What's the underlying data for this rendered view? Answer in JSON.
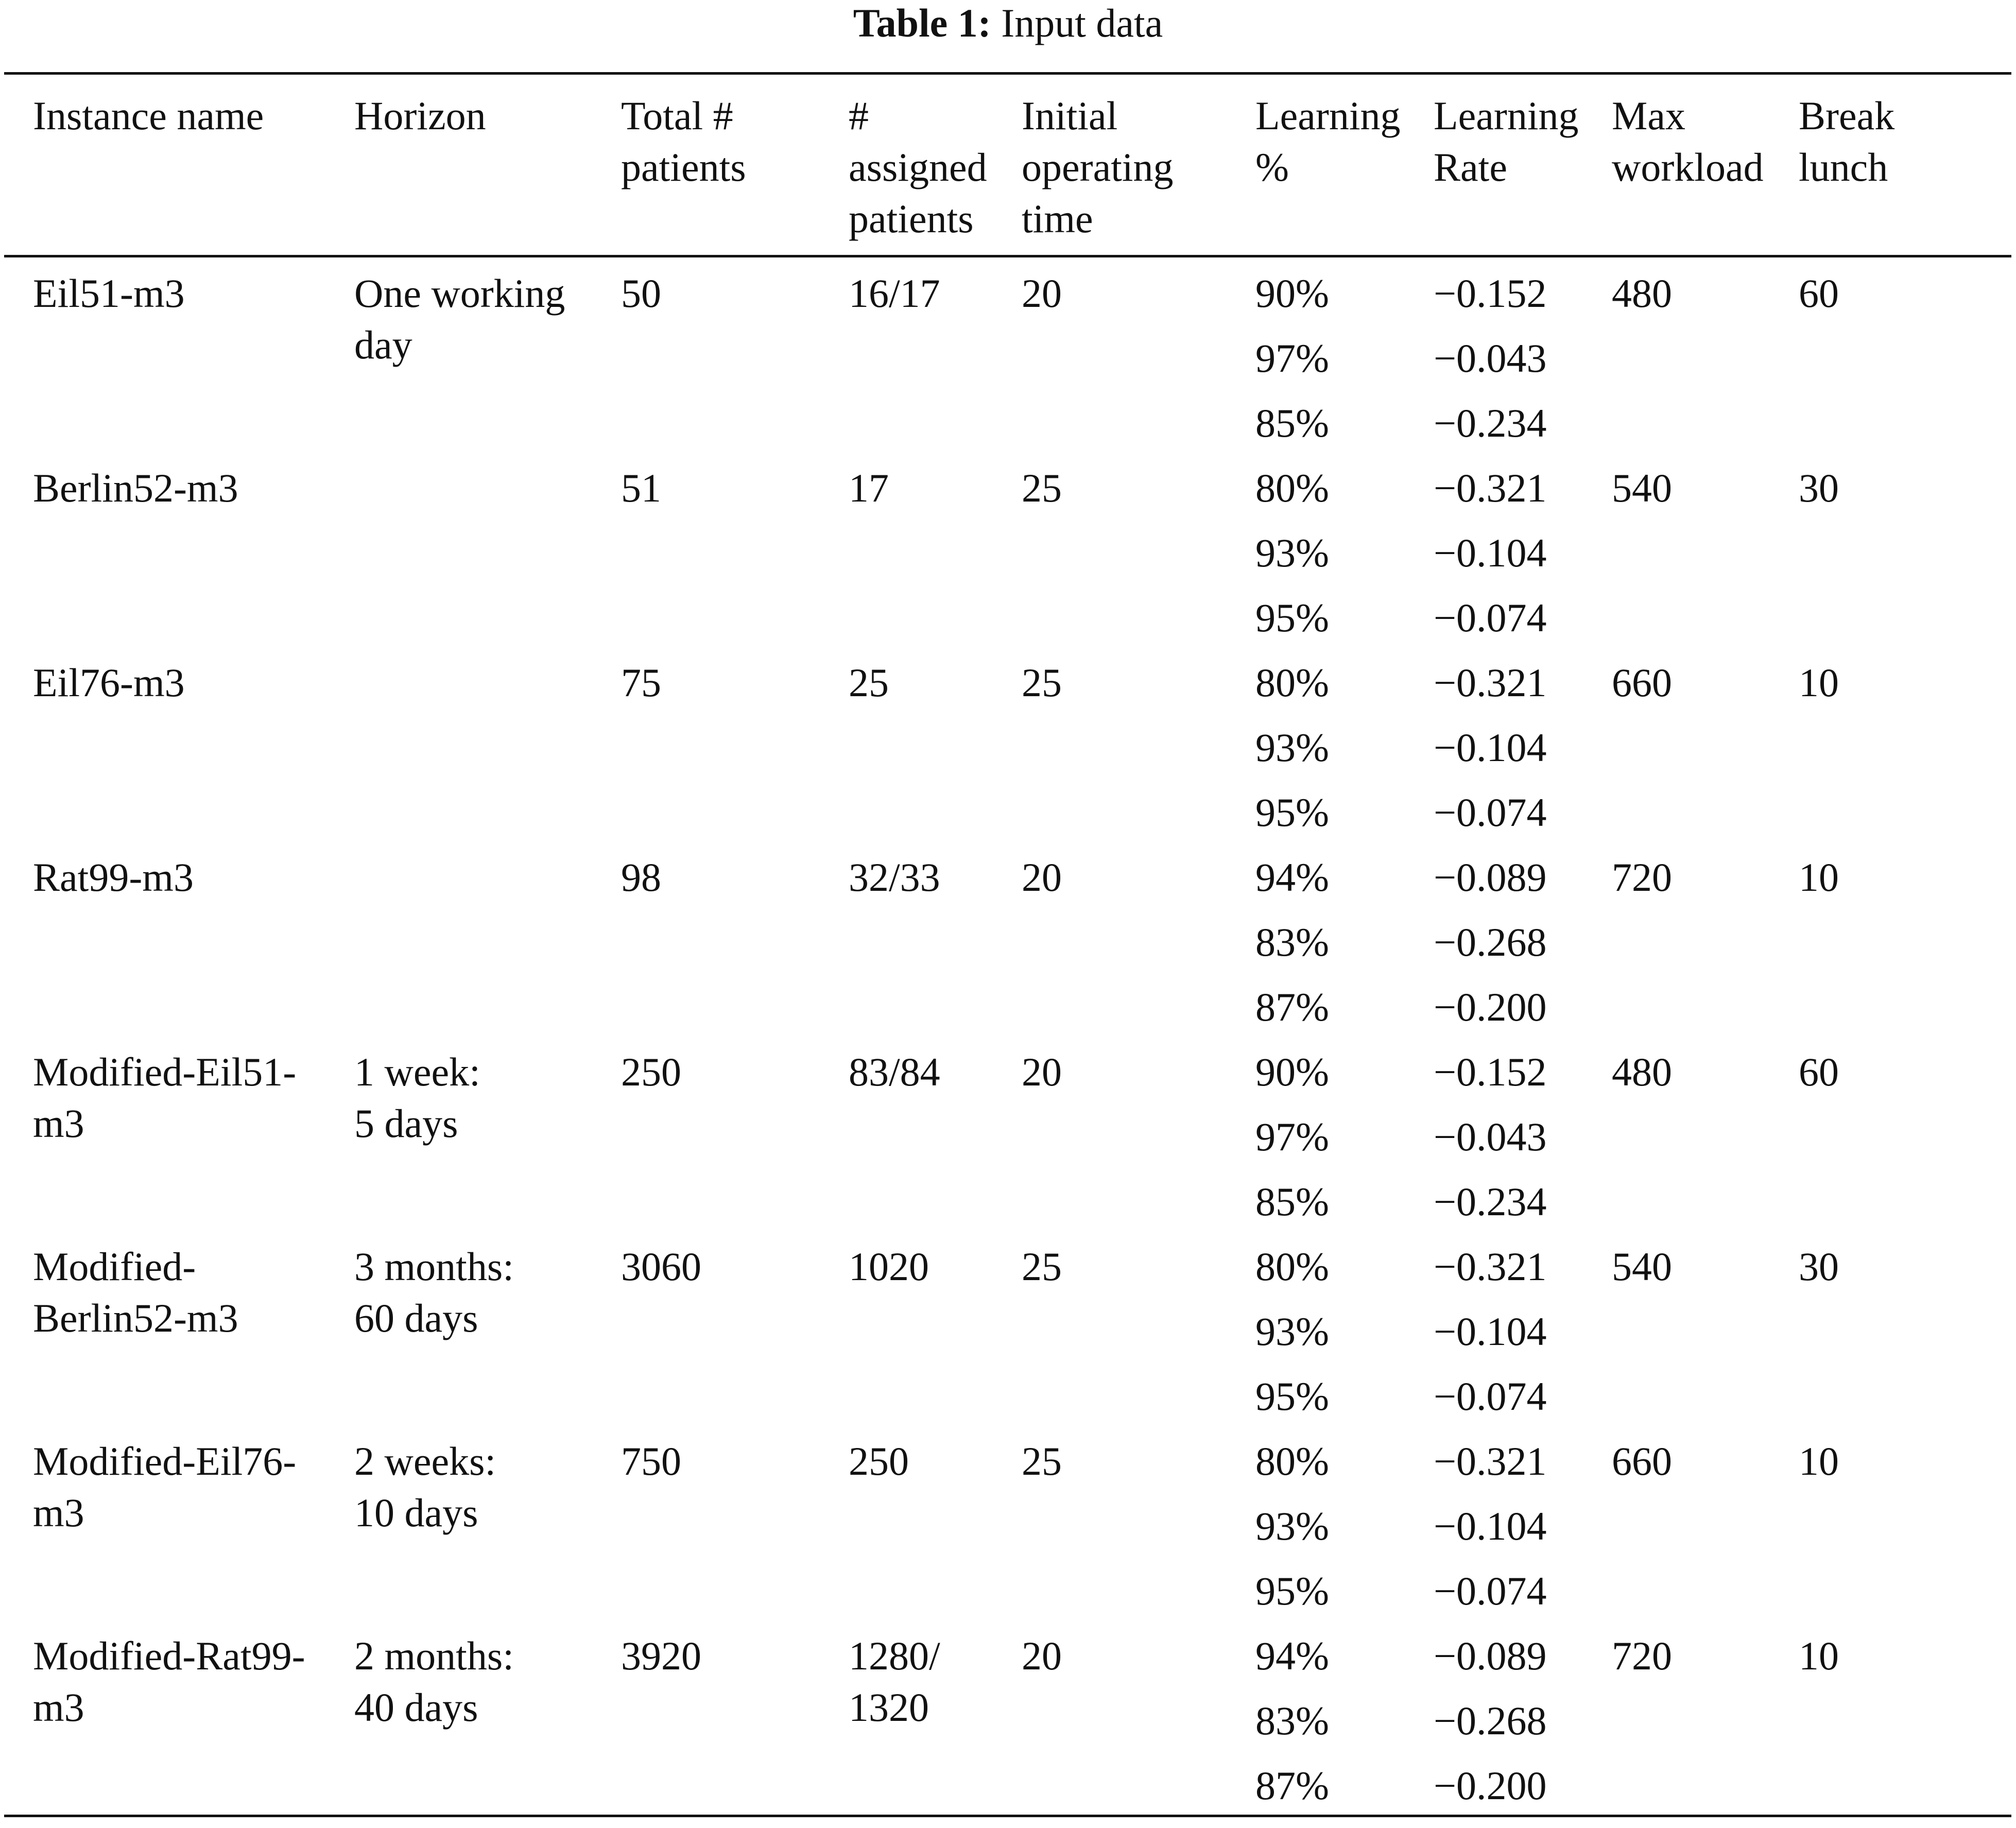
{
  "caption": {
    "label": "Table 1:",
    "text": "Input data"
  },
  "headers": [
    "Instance name",
    "Horizon",
    "Total #\npatients",
    "#\nassigned\npatients",
    "Initial\noperating\ntime",
    "Learning\n%",
    "Learning\nRate",
    "Max\nworkload",
    "Break\nlunch"
  ],
  "groups": [
    {
      "instance": "Eil51-m3",
      "horizon": "One working\nday",
      "total": "50",
      "assigned": "16/17",
      "initial": "20",
      "learning_pct": [
        "90%",
        "97%",
        "85%"
      ],
      "learning_rate": [
        "−0.152",
        "−0.043",
        "−0.234"
      ],
      "max_workload": "480",
      "break_lunch": "60"
    },
    {
      "instance": "Berlin52-m3",
      "horizon": "",
      "total": "51",
      "assigned": "17",
      "initial": "25",
      "learning_pct": [
        "80%",
        "93%",
        "95%"
      ],
      "learning_rate": [
        "−0.321",
        "−0.104",
        "−0.074"
      ],
      "max_workload": "540",
      "break_lunch": "30"
    },
    {
      "instance": "Eil76-m3",
      "horizon": "",
      "total": "75",
      "assigned": "25",
      "initial": "25",
      "learning_pct": [
        "80%",
        "93%",
        "95%"
      ],
      "learning_rate": [
        "−0.321",
        "−0.104",
        "−0.074"
      ],
      "max_workload": "660",
      "break_lunch": "10"
    },
    {
      "instance": "Rat99-m3",
      "horizon": "",
      "total": "98",
      "assigned": "32/33",
      "initial": "20",
      "learning_pct": [
        "94%",
        "83%",
        "87%"
      ],
      "learning_rate": [
        "−0.089",
        "−0.268",
        "−0.200"
      ],
      "max_workload": "720",
      "break_lunch": "10"
    },
    {
      "instance": "Modified-Eil51-\nm3",
      "horizon": "1 week:\n5 days",
      "total": "250",
      "assigned": "83/84",
      "initial": "20",
      "learning_pct": [
        "90%",
        "97%",
        "85%"
      ],
      "learning_rate": [
        "−0.152",
        "−0.043",
        "−0.234"
      ],
      "max_workload": "480",
      "break_lunch": "60"
    },
    {
      "instance": "Modified-\nBerlin52-m3",
      "horizon": "3 months:\n60 days",
      "total": "3060",
      "assigned": "1020",
      "initial": "25",
      "learning_pct": [
        "80%",
        "93%",
        "95%"
      ],
      "learning_rate": [
        "−0.321",
        "−0.104",
        "−0.074"
      ],
      "max_workload": "540",
      "break_lunch": "30"
    },
    {
      "instance": "Modified-Eil76-\nm3",
      "horizon": "2 weeks:\n10 days",
      "total": "750",
      "assigned": "250",
      "initial": "25",
      "learning_pct": [
        "80%",
        "93%",
        "95%"
      ],
      "learning_rate": [
        "−0.321",
        "−0.104",
        "−0.074"
      ],
      "max_workload": "660",
      "break_lunch": "10"
    },
    {
      "instance": "Modified-Rat99-\nm3",
      "horizon": "2 months:\n40 days",
      "total": "3920",
      "assigned": "1280/\n1320",
      "initial": "20",
      "learning_pct": [
        "94%",
        "83%",
        "87%"
      ],
      "learning_rate": [
        "−0.089",
        "−0.268",
        "−0.200"
      ],
      "max_workload": "720",
      "break_lunch": "10"
    }
  ]
}
